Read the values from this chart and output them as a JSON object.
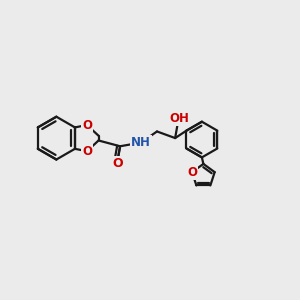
{
  "bg_color": "#ebebeb",
  "bond_color": "#1a1a1a",
  "bond_width": 1.6,
  "atom_colors": {
    "O": "#cc0000",
    "N": "#2255aa",
    "H_teal": "#336666",
    "C": "#1a1a1a"
  },
  "font_size_atom": 8.5,
  "scale": 1.0
}
